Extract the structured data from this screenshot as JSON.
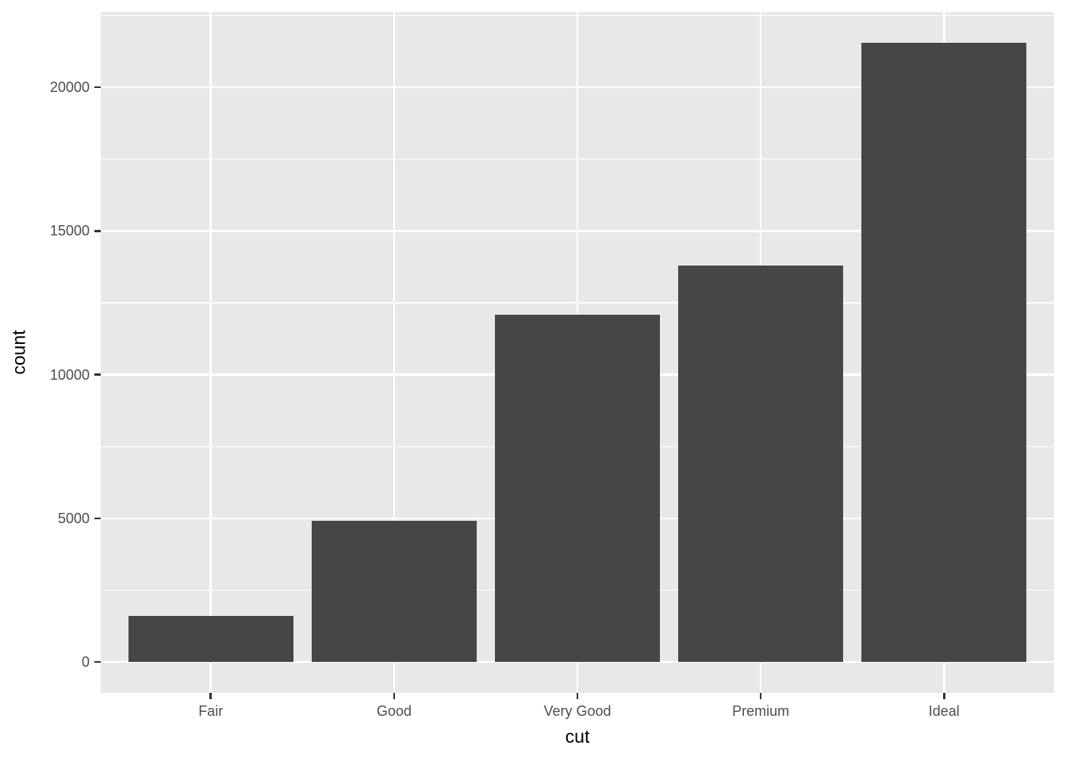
{
  "figure": {
    "background": "#FFFFFF",
    "panel_bg": "#E8E8E8",
    "grid_color": "#FFFFFF",
    "bar_fill": "#464646",
    "tick_label_color": "#4D4D4D",
    "axis_title_color": "#000000",
    "tick_mark_color": "#333333"
  },
  "chart_data": {
    "type": "bar",
    "xlabel": "cut",
    "ylabel": "count",
    "categories": [
      "Fair",
      "Good",
      "Very Good",
      "Premium",
      "Ideal"
    ],
    "values": [
      1610,
      4906,
      12082,
      13791,
      21551
    ],
    "y_major_ticks": [
      0,
      5000,
      10000,
      15000,
      20000
    ],
    "y_minor_ticks": [
      2500,
      7500,
      12500,
      17500,
      22500
    ],
    "ylim": [
      0,
      21551
    ],
    "y_expand_mult": 0.05,
    "x_expand_add": 0.6,
    "bar_width_fraction": 0.9,
    "grid": "white major and minor horizontal lines, white major vertical lines at category centers",
    "legend": "none",
    "style": "ggplot2 theme_grey single-series bar chart"
  }
}
